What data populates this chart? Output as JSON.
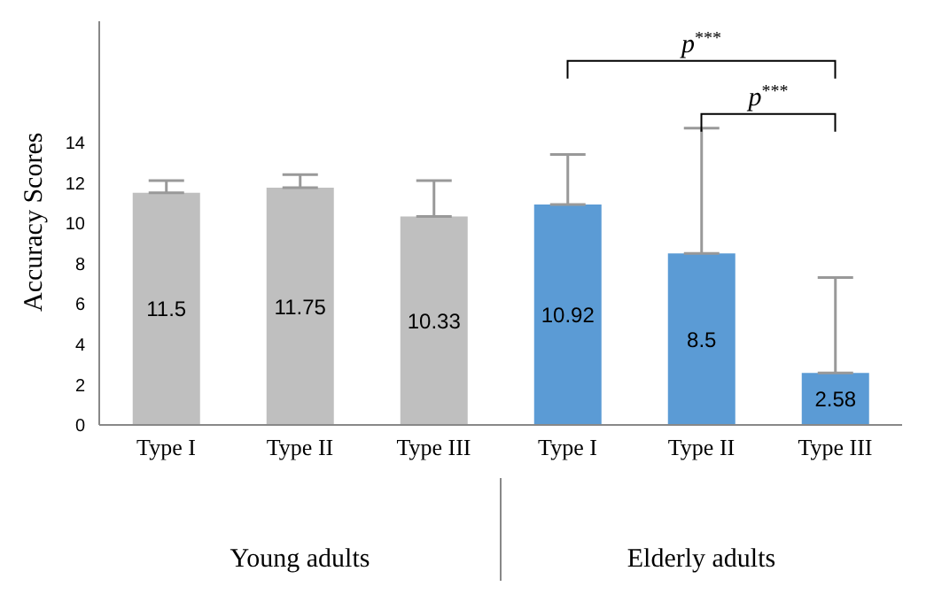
{
  "chart_data": {
    "type": "bar",
    "ylabel": "Accuracy Scores",
    "categories": [
      "Type I",
      "Type II",
      "Type III",
      "Type I",
      "Type II",
      "Type III"
    ],
    "values": [
      11.5,
      11.75,
      10.33,
      10.92,
      8.5,
      2.58
    ],
    "colors": [
      "#bfbfbf",
      "#bfbfbf",
      "#bfbfbf",
      "#5b9bd5",
      "#5b9bd5",
      "#5b9bd5"
    ],
    "errors": [
      [
        11.5,
        12.1
      ],
      [
        11.75,
        12.4
      ],
      [
        10.33,
        12.1
      ],
      [
        10.92,
        13.4
      ],
      [
        8.5,
        14.7
      ],
      [
        2.58,
        7.3
      ]
    ],
    "ylim": [
      0,
      20
    ],
    "yticks": [
      0,
      2,
      4,
      6,
      8,
      10,
      12,
      14
    ],
    "grid": false,
    "legend": false,
    "data_labels": true,
    "annotations": [
      "Young adults",
      "Elderly adults",
      "p$^{***}$",
      "p$^{***}$"
    ]
  }
}
